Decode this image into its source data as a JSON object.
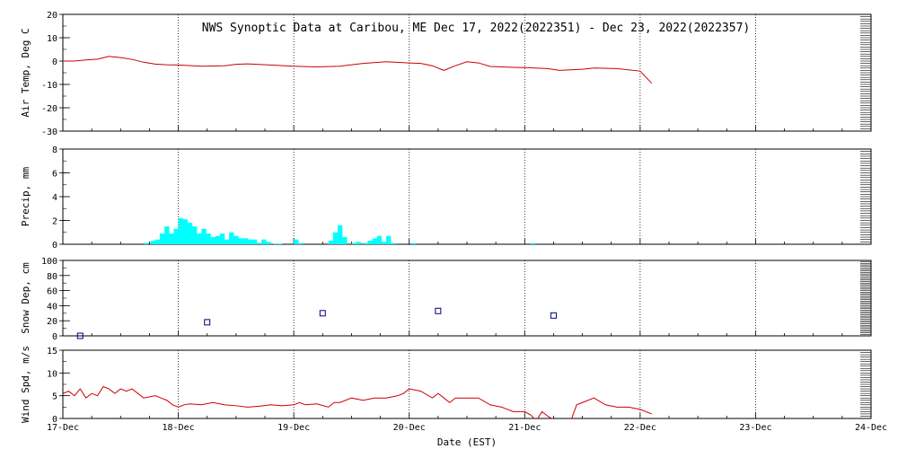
{
  "chart_data": {
    "type": "multi-panel time series",
    "title": "NWS Synoptic Data at Caribou, ME   Dec 17, 2022(2022351) - Dec 23, 2022(2022357)",
    "xlabel": "Date (EST)",
    "x_ticks": [
      "17-Dec",
      "18-Dec",
      "19-Dec",
      "20-Dec",
      "21-Dec",
      "22-Dec",
      "23-Dec",
      "24-Dec"
    ],
    "x_range_days": [
      0,
      7
    ],
    "grid": "dotted vertical at each day",
    "panels": [
      {
        "id": "air_temp",
        "type": "line",
        "ylabel": "Air Temp, Deg C",
        "ylim": [
          -30,
          20
        ],
        "yticks": [
          20,
          10,
          0,
          -10,
          -20,
          -30
        ],
        "color": "#cc0000",
        "x": [
          0,
          0.1,
          0.2,
          0.3,
          0.4,
          0.5,
          0.6,
          0.7,
          0.8,
          0.9,
          1.0,
          1.2,
          1.4,
          1.5,
          1.6,
          1.8,
          2.0,
          2.2,
          2.4,
          2.6,
          2.8,
          3.0,
          3.1,
          3.2,
          3.3,
          3.4,
          3.5,
          3.6,
          3.7,
          3.8,
          3.9,
          4.0,
          4.2,
          4.3,
          4.5,
          4.6,
          4.8,
          5.0,
          5.1
        ],
        "values": [
          0,
          0,
          0.5,
          0.8,
          2,
          1.5,
          0.7,
          -0.5,
          -1.3,
          -1.6,
          -1.7,
          -2.2,
          -2.0,
          -1.4,
          -1.2,
          -1.7,
          -2.2,
          -2.5,
          -2.2,
          -1.0,
          -0.3,
          -0.8,
          -1.0,
          -2.0,
          -4.0,
          -2.0,
          -0.3,
          -0.8,
          -2.3,
          -2.5,
          -2.7,
          -2.8,
          -3.2,
          -4.0,
          -3.5,
          -3.0,
          -3.2,
          -4.3,
          -9.5
        ]
      },
      {
        "id": "precip",
        "type": "bar",
        "ylabel": "Precip, mm",
        "ylim": [
          0,
          8
        ],
        "yticks": [
          8,
          6,
          4,
          2,
          0
        ],
        "color": "#00ffff",
        "bin_width_days": 0.04167,
        "x": [
          0.7,
          0.76,
          0.8,
          0.84,
          0.88,
          0.92,
          0.96,
          1.0,
          1.04,
          1.08,
          1.12,
          1.16,
          1.2,
          1.24,
          1.28,
          1.32,
          1.36,
          1.4,
          1.44,
          1.48,
          1.52,
          1.56,
          1.6,
          1.64,
          1.68,
          1.72,
          1.76,
          1.82,
          1.86,
          2.0,
          2.04,
          2.3,
          2.34,
          2.38,
          2.42,
          2.5,
          2.54,
          2.6,
          2.64,
          2.68,
          2.72,
          2.76,
          2.8,
          2.84,
          3.02,
          4.05
        ],
        "values": [
          0.1,
          0.3,
          0.4,
          0.9,
          1.5,
          0.9,
          1.3,
          2.2,
          2.1,
          1.8,
          1.5,
          0.9,
          1.3,
          0.9,
          0.6,
          0.7,
          0.9,
          0.4,
          1.0,
          0.7,
          0.5,
          0.5,
          0.4,
          0.4,
          0.1,
          0.4,
          0.2,
          0.05,
          0.05,
          0.4,
          0.1,
          0.3,
          1.0,
          1.6,
          0.6,
          0.1,
          0.2,
          0.1,
          0.3,
          0.5,
          0.7,
          0.2,
          0.7,
          0.1,
          0.1,
          0.1
        ]
      },
      {
        "id": "snow_depth",
        "type": "scatter",
        "ylabel": "Snow Dep, cm",
        "ylim": [
          0,
          100
        ],
        "yticks": [
          100,
          80,
          60,
          40,
          20,
          0
        ],
        "color": "#000080",
        "marker": "square",
        "x": [
          0.15,
          1.25,
          2.25,
          3.25,
          4.25
        ],
        "values": [
          0,
          18,
          30,
          33,
          27
        ]
      },
      {
        "id": "wind_speed",
        "type": "line",
        "ylabel": "Wind Spd, m/s",
        "ylim": [
          0,
          15
        ],
        "yticks": [
          15,
          10,
          5,
          0
        ],
        "color": "#cc0000",
        "x": [
          0,
          0.05,
          0.1,
          0.15,
          0.2,
          0.25,
          0.3,
          0.35,
          0.4,
          0.45,
          0.5,
          0.55,
          0.6,
          0.7,
          0.8,
          0.85,
          0.9,
          0.95,
          1.0,
          1.05,
          1.1,
          1.2,
          1.3,
          1.4,
          1.5,
          1.6,
          1.7,
          1.8,
          1.9,
          2.0,
          2.05,
          2.1,
          2.2,
          2.3,
          2.35,
          2.4,
          2.5,
          2.6,
          2.7,
          2.8,
          2.9,
          2.95,
          3.0,
          3.1,
          3.2,
          3.25,
          3.3,
          3.35,
          3.4,
          3.5,
          3.6,
          3.7,
          3.8,
          3.9,
          4.0,
          4.05,
          4.1,
          4.15,
          4.2,
          4.3,
          4.4,
          4.45,
          4.5,
          4.6,
          4.7,
          4.8,
          4.9,
          5.0,
          5.1
        ],
        "values": [
          5.5,
          6,
          5,
          6.5,
          4.5,
          5.5,
          5,
          7,
          6.5,
          5.5,
          6.5,
          6,
          6.5,
          4.5,
          5,
          4.5,
          4,
          3,
          2.5,
          3,
          3.2,
          3,
          3.5,
          3,
          2.8,
          2.5,
          2.7,
          3,
          2.8,
          3,
          3.5,
          3,
          3.2,
          2.5,
          3.5,
          3.5,
          4.5,
          4,
          4.5,
          4.5,
          5,
          5.5,
          6.5,
          6,
          4.5,
          5.5,
          4.5,
          3.5,
          4.5,
          4.5,
          4.5,
          3,
          2.5,
          1.5,
          1.5,
          0.8,
          -0.5,
          1.5,
          0.5,
          -1,
          -0.5,
          3,
          3.5,
          4.5,
          3,
          2.5,
          2.5,
          2,
          1
        ]
      }
    ]
  }
}
